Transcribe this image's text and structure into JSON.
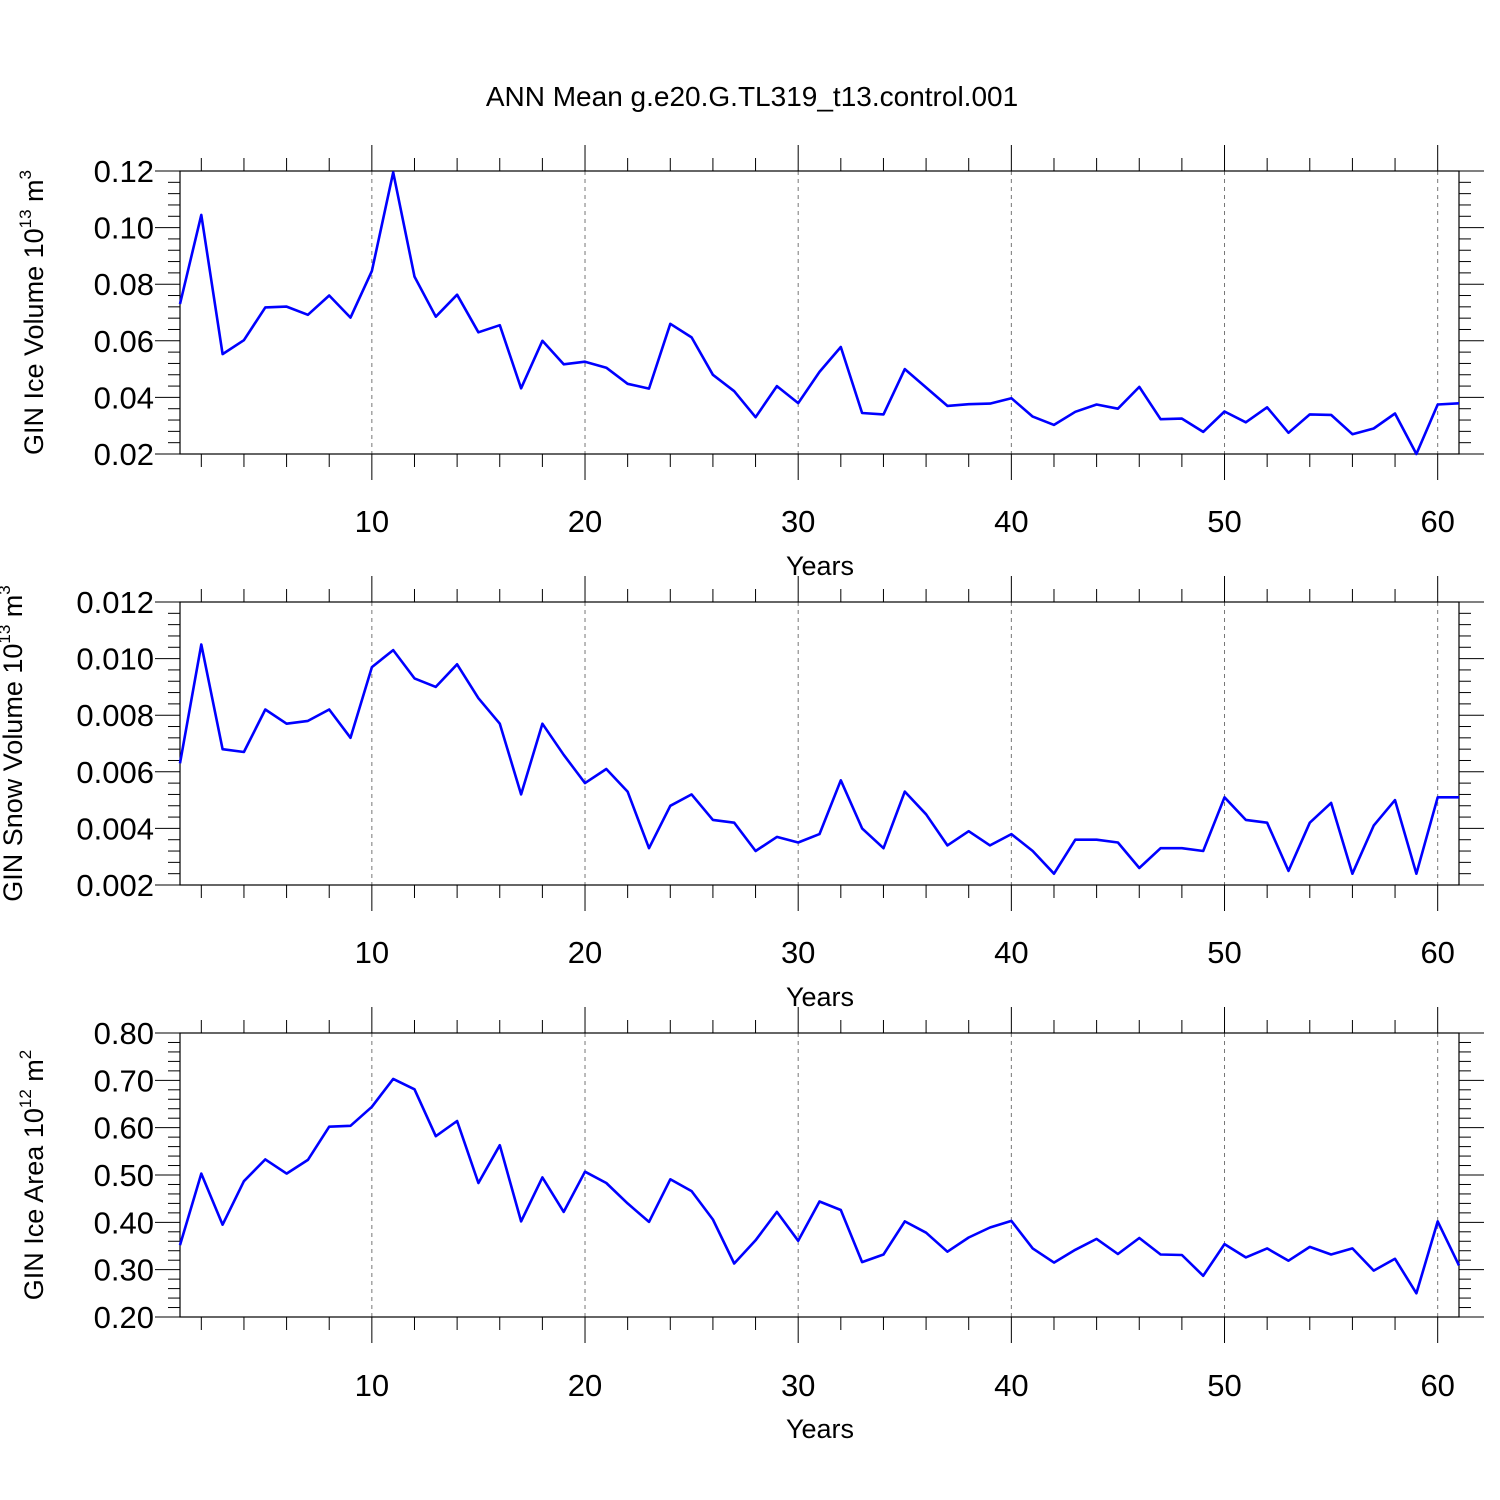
{
  "figure_title": "ANN Mean g.e20.G.TL319_t13.control.001",
  "chart_data": [
    {
      "type": "line",
      "ylabel": "GIN Ice Volume 10",
      "ylabel_exp": "13",
      "ylabel_unit": " m",
      "ylabel_unit_exp": "3",
      "xlabel": "Years",
      "xlim": [
        1,
        61
      ],
      "ylim": [
        0.02,
        0.12
      ],
      "x_ticks": [
        10,
        20,
        30,
        40,
        50,
        60
      ],
      "x_tick_labels": [
        "10",
        "20",
        "30",
        "40",
        "50",
        "60"
      ],
      "y_ticks": [
        0.02,
        0.04,
        0.06,
        0.08,
        0.1,
        0.12
      ],
      "y_tick_labels": [
        "0.02",
        "0.04",
        "0.06",
        "0.08",
        "0.10",
        "0.12"
      ],
      "grid": "vertical dashed at major x ticks",
      "color": "#0000ff",
      "series": [
        {
          "x": [
            1,
            2,
            3,
            4,
            5,
            6,
            7,
            8,
            9,
            10,
            11,
            12,
            13,
            14,
            15,
            16,
            17,
            18,
            19,
            20,
            21,
            22,
            23,
            24,
            25,
            26,
            27,
            28,
            29,
            30,
            31,
            32,
            33,
            34,
            35,
            36,
            37,
            38,
            39,
            40,
            41,
            42,
            43,
            44,
            45,
            46,
            47,
            48,
            49,
            50,
            51,
            52,
            53,
            54,
            55,
            56,
            57,
            58,
            59,
            60,
            61
          ],
          "values": [
            0.073,
            0.1045,
            0.0553,
            0.0602,
            0.0718,
            0.0721,
            0.0692,
            0.076,
            0.0682,
            0.0847,
            0.1195,
            0.0827,
            0.0685,
            0.0763,
            0.063,
            0.0655,
            0.0432,
            0.06,
            0.0517,
            0.0526,
            0.0505,
            0.0448,
            0.0431,
            0.066,
            0.0612,
            0.048,
            0.0422,
            0.033,
            0.044,
            0.038,
            0.049,
            0.0578,
            0.0345,
            0.034,
            0.05,
            0.0435,
            0.037,
            0.0376,
            0.0378,
            0.0397,
            0.0332,
            0.0303,
            0.0349,
            0.0375,
            0.036,
            0.0437,
            0.0323,
            0.0325,
            0.0278,
            0.035,
            0.0312,
            0.0365,
            0.0275,
            0.034,
            0.0338,
            0.027,
            0.029,
            0.0343,
            0.02,
            0.0375,
            0.0379
          ]
        }
      ]
    },
    {
      "type": "line",
      "ylabel": "GIN Snow Volume 10",
      "ylabel_exp": "13",
      "ylabel_unit": " m",
      "ylabel_unit_exp": "3",
      "xlabel": "Years",
      "xlim": [
        1,
        61
      ],
      "ylim": [
        0.002,
        0.012
      ],
      "x_ticks": [
        10,
        20,
        30,
        40,
        50,
        60
      ],
      "x_tick_labels": [
        "10",
        "20",
        "30",
        "40",
        "50",
        "60"
      ],
      "y_ticks": [
        0.002,
        0.004,
        0.006,
        0.008,
        0.01,
        0.012
      ],
      "y_tick_labels": [
        "0.002",
        "0.004",
        "0.006",
        "0.008",
        "0.010",
        "0.012"
      ],
      "grid": "vertical dashed at major x ticks",
      "color": "#0000ff",
      "series": [
        {
          "x": [
            1,
            2,
            3,
            4,
            5,
            6,
            7,
            8,
            9,
            10,
            11,
            12,
            13,
            14,
            15,
            16,
            17,
            18,
            19,
            20,
            21,
            22,
            23,
            24,
            25,
            26,
            27,
            28,
            29,
            30,
            31,
            32,
            33,
            34,
            35,
            36,
            37,
            38,
            39,
            40,
            41,
            42,
            43,
            44,
            45,
            46,
            47,
            48,
            49,
            50,
            51,
            52,
            53,
            54,
            55,
            56,
            57,
            58,
            59,
            60,
            61
          ],
          "values": [
            0.0063,
            0.0105,
            0.0068,
            0.0067,
            0.0082,
            0.0077,
            0.0078,
            0.0082,
            0.0072,
            0.0097,
            0.0103,
            0.0093,
            0.009,
            0.0098,
            0.0086,
            0.0077,
            0.0052,
            0.0077,
            0.0066,
            0.0056,
            0.0061,
            0.0053,
            0.0033,
            0.0048,
            0.0052,
            0.0043,
            0.0042,
            0.0032,
            0.0037,
            0.0035,
            0.0038,
            0.0057,
            0.004,
            0.0033,
            0.0053,
            0.0045,
            0.0034,
            0.0039,
            0.0034,
            0.0038,
            0.0032,
            0.0024,
            0.0036,
            0.0036,
            0.0035,
            0.0026,
            0.0033,
            0.0033,
            0.0032,
            0.0051,
            0.0043,
            0.0042,
            0.0025,
            0.0042,
            0.0049,
            0.0024,
            0.0041,
            0.005,
            0.0024,
            0.0051,
            0.0051
          ]
        }
      ]
    },
    {
      "type": "line",
      "ylabel": "GIN Ice Area 10",
      "ylabel_exp": "12",
      "ylabel_unit": " m",
      "ylabel_unit_exp": "2",
      "xlabel": "Years",
      "xlim": [
        1,
        61
      ],
      "ylim": [
        0.2,
        0.8
      ],
      "x_ticks": [
        10,
        20,
        30,
        40,
        50,
        60
      ],
      "x_tick_labels": [
        "10",
        "20",
        "30",
        "40",
        "50",
        "60"
      ],
      "y_ticks": [
        0.2,
        0.3,
        0.4,
        0.5,
        0.6,
        0.7,
        0.8
      ],
      "y_tick_labels": [
        "0.20",
        "0.30",
        "0.40",
        "0.50",
        "0.60",
        "0.70",
        "0.80"
      ],
      "grid": "vertical dashed at major x ticks",
      "color": "#0000ff",
      "series": [
        {
          "x": [
            1,
            2,
            3,
            4,
            5,
            6,
            7,
            8,
            9,
            10,
            11,
            12,
            13,
            14,
            15,
            16,
            17,
            18,
            19,
            20,
            21,
            22,
            23,
            24,
            25,
            26,
            27,
            28,
            29,
            30,
            31,
            32,
            33,
            34,
            35,
            36,
            37,
            38,
            39,
            40,
            41,
            42,
            43,
            44,
            45,
            46,
            47,
            48,
            49,
            50,
            51,
            52,
            53,
            54,
            55,
            56,
            57,
            58,
            59,
            60,
            61
          ],
          "values": [
            0.352,
            0.503,
            0.395,
            0.487,
            0.533,
            0.503,
            0.532,
            0.602,
            0.604,
            0.644,
            0.703,
            0.681,
            0.582,
            0.614,
            0.483,
            0.563,
            0.402,
            0.495,
            0.422,
            0.507,
            0.483,
            0.44,
            0.401,
            0.491,
            0.466,
            0.406,
            0.313,
            0.362,
            0.422,
            0.361,
            0.444,
            0.426,
            0.316,
            0.332,
            0.402,
            0.378,
            0.338,
            0.368,
            0.389,
            0.403,
            0.345,
            0.315,
            0.342,
            0.365,
            0.333,
            0.367,
            0.332,
            0.331,
            0.287,
            0.354,
            0.326,
            0.345,
            0.319,
            0.348,
            0.332,
            0.345,
            0.298,
            0.323,
            0.25,
            0.402,
            0.309
          ]
        }
      ]
    }
  ]
}
